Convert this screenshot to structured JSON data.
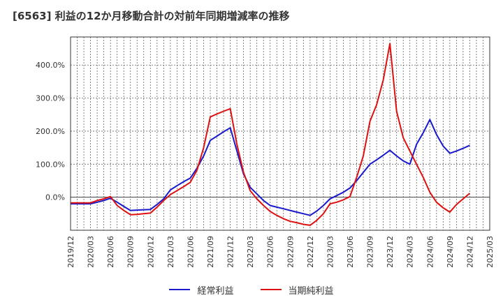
{
  "colors": {
    "series_ordinary": "#1a1acc",
    "series_net": "#dd1111",
    "grid": "#666666",
    "zero_line": "#444444"
  },
  "chart_data": {
    "type": "line",
    "title": "[6563]  利益の12か月移動合計の対前年同期増減率の推移",
    "xlabel": "",
    "ylabel": "",
    "ylim": [
      -100,
      485
    ],
    "yticks": [
      0,
      100,
      200,
      300,
      400
    ],
    "ytick_labels": [
      "0.0%",
      "100.0%",
      "200.0%",
      "300.0%",
      "400.0%"
    ],
    "x": [
      "2019/12",
      "2020/01",
      "2020/02",
      "2020/03",
      "2020/04",
      "2020/05",
      "2020/06",
      "2020/07",
      "2020/08",
      "2020/09",
      "2020/10",
      "2020/11",
      "2020/12",
      "2021/01",
      "2021/02",
      "2021/03",
      "2021/04",
      "2021/05",
      "2021/06",
      "2021/07",
      "2021/08",
      "2021/09",
      "2021/10",
      "2021/11",
      "2021/12",
      "2022/01",
      "2022/02",
      "2022/03",
      "2022/04",
      "2022/05",
      "2022/06",
      "2022/07",
      "2022/08",
      "2022/09",
      "2022/10",
      "2022/11",
      "2022/12",
      "2023/01",
      "2023/02",
      "2023/03",
      "2023/04",
      "2023/05",
      "2023/06",
      "2023/07",
      "2023/08",
      "2023/09",
      "2023/10",
      "2023/11",
      "2023/12",
      "2024/01",
      "2024/02",
      "2024/03",
      "2024/04",
      "2024/05",
      "2024/06",
      "2024/07",
      "2024/08",
      "2024/09",
      "2024/10",
      "2024/11",
      "2024/12",
      "2025/01",
      "2025/02",
      "2025/03"
    ],
    "xtick_labels": [
      "2019/12",
      "2020/03",
      "2020/06",
      "2020/09",
      "2020/12",
      "2021/03",
      "2021/06",
      "2021/09",
      "2021/12",
      "2022/03",
      "2022/06",
      "2022/09",
      "2022/12",
      "2023/03",
      "2023/06",
      "2023/09",
      "2023/12",
      "2024/03",
      "2024/06",
      "2024/09",
      "2024/12",
      "2025/03"
    ],
    "series": [
      {
        "name": "経常利益",
        "color": "#1a1acc",
        "values": [
          -20,
          -20,
          -20,
          -20,
          -15,
          -10,
          -3,
          -15,
          -28,
          -40,
          -39,
          -38,
          -37,
          -22,
          -5,
          22,
          35,
          47,
          58,
          88,
          125,
          172,
          185,
          198,
          210,
          140,
          70,
          30,
          10,
          -10,
          -25,
          -30,
          -35,
          -40,
          -45,
          -50,
          -55,
          -42,
          -25,
          -5,
          5,
          15,
          28,
          50,
          75,
          100,
          113,
          127,
          142,
          125,
          110,
          100,
          160,
          195,
          235,
          190,
          155,
          133,
          140,
          148,
          157,
          null,
          null,
          null
        ]
      },
      {
        "name": "当期純利益",
        "color": "#dd1111",
        "values": [
          -17,
          -17,
          -17,
          -17,
          -10,
          -5,
          2,
          -25,
          -40,
          -53,
          -52,
          -50,
          -48,
          -30,
          -10,
          8,
          20,
          32,
          45,
          82,
          150,
          243,
          252,
          260,
          268,
          160,
          75,
          20,
          -5,
          -25,
          -43,
          -55,
          -65,
          -73,
          -77,
          -82,
          -85,
          -70,
          -50,
          -20,
          -15,
          -8,
          2,
          60,
          125,
          230,
          280,
          355,
          465,
          260,
          180,
          140,
          100,
          60,
          15,
          -15,
          -32,
          -45,
          -22,
          -5,
          12,
          null,
          null,
          null
        ]
      }
    ]
  }
}
